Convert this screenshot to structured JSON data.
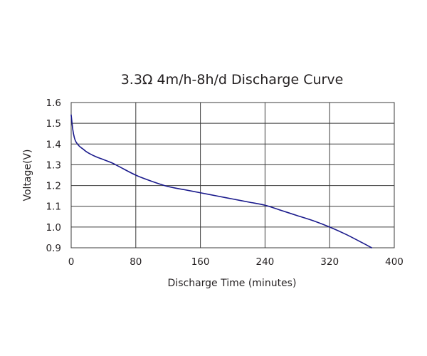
{
  "chart_data": {
    "type": "line",
    "title": "3.3Ω 4m/h-8h/d Discharge Curve",
    "xlabel": "Discharge Time (minutes)",
    "ylabel": "Voltage(V)",
    "xlim": [
      0,
      400
    ],
    "ylim": [
      0.9,
      1.6
    ],
    "x_ticks": [
      0,
      80,
      160,
      240,
      320,
      400
    ],
    "y_ticks": [
      0.9,
      1.0,
      1.1,
      1.2,
      1.3,
      1.4,
      1.5,
      1.6
    ],
    "x_tick_labels": [
      "0",
      "80",
      "160",
      "240",
      "320",
      "400"
    ],
    "y_tick_labels": [
      "0.9",
      "1.0",
      "1.1",
      "1.2",
      "1.3",
      "1.4",
      "1.5",
      "1.6"
    ],
    "grid": true,
    "series": [
      {
        "color": "#1a1a8c",
        "x": [
          0,
          2,
          4,
          6,
          10,
          15,
          20,
          30,
          40,
          50,
          60,
          80,
          100,
          120,
          140,
          160,
          180,
          200,
          220,
          240,
          260,
          280,
          300,
          320,
          340,
          360,
          372
        ],
        "y": [
          1.54,
          1.47,
          1.43,
          1.41,
          1.39,
          1.375,
          1.36,
          1.34,
          1.325,
          1.31,
          1.29,
          1.25,
          1.22,
          1.195,
          1.18,
          1.165,
          1.15,
          1.135,
          1.12,
          1.105,
          1.08,
          1.055,
          1.03,
          1.0,
          0.965,
          0.925,
          0.9
        ]
      }
    ]
  }
}
